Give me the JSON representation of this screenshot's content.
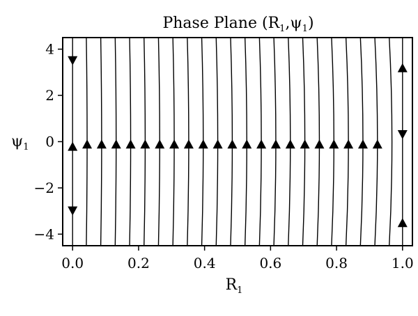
{
  "chart_data": {
    "type": "streamplot",
    "title": "Phase Plane (R",
    "title_sub": "1",
    "title_mid": ",ψ",
    "title_sub2": "1",
    "title_end": ")",
    "xlabel": "R",
    "xlabel_sub": "1",
    "ylabel": "ψ",
    "ylabel_sub": "1",
    "xlim": [
      -0.03,
      1.03
    ],
    "ylim": [
      -4.5,
      4.5
    ],
    "x_ticks": [
      0.0,
      0.2,
      0.4,
      0.6,
      0.8,
      1.0
    ],
    "x_tick_labels": [
      "0.0",
      "0.2",
      "0.4",
      "0.6",
      "0.8",
      "1.0"
    ],
    "y_ticks": [
      -4,
      -2,
      0,
      2,
      4
    ],
    "y_tick_labels": [
      "−4",
      "−2",
      "0",
      "2",
      "4"
    ],
    "grid": false,
    "line_color": "#000000",
    "streamlines_x": [
      0.0,
      0.044,
      0.088,
      0.132,
      0.176,
      0.22,
      0.264,
      0.308,
      0.352,
      0.396,
      0.44,
      0.484,
      0.528,
      0.572,
      0.616,
      0.66,
      0.704,
      0.748,
      0.792,
      0.836,
      0.88,
      0.924,
      0.968,
      1.0
    ],
    "arrows": [
      {
        "x": 0.0,
        "y": 3.5,
        "dir": "down"
      },
      {
        "x": 0.0,
        "y": -0.2,
        "dir": "up"
      },
      {
        "x": 0.0,
        "y": -3.0,
        "dir": "down"
      },
      {
        "x": 0.044,
        "y": -0.1,
        "dir": "up"
      },
      {
        "x": 0.088,
        "y": -0.1,
        "dir": "up"
      },
      {
        "x": 0.132,
        "y": -0.1,
        "dir": "up"
      },
      {
        "x": 0.176,
        "y": -0.1,
        "dir": "up"
      },
      {
        "x": 0.22,
        "y": -0.1,
        "dir": "up"
      },
      {
        "x": 0.264,
        "y": -0.1,
        "dir": "up"
      },
      {
        "x": 0.308,
        "y": -0.1,
        "dir": "up"
      },
      {
        "x": 0.352,
        "y": -0.1,
        "dir": "up"
      },
      {
        "x": 0.396,
        "y": -0.1,
        "dir": "up"
      },
      {
        "x": 0.44,
        "y": -0.1,
        "dir": "up"
      },
      {
        "x": 0.484,
        "y": -0.1,
        "dir": "up"
      },
      {
        "x": 0.528,
        "y": -0.1,
        "dir": "up"
      },
      {
        "x": 0.572,
        "y": -0.1,
        "dir": "up"
      },
      {
        "x": 0.616,
        "y": -0.1,
        "dir": "up"
      },
      {
        "x": 0.66,
        "y": -0.1,
        "dir": "up"
      },
      {
        "x": 0.704,
        "y": -0.1,
        "dir": "up"
      },
      {
        "x": 0.748,
        "y": -0.1,
        "dir": "up"
      },
      {
        "x": 0.792,
        "y": -0.1,
        "dir": "up"
      },
      {
        "x": 0.836,
        "y": -0.1,
        "dir": "up"
      },
      {
        "x": 0.88,
        "y": -0.1,
        "dir": "up"
      },
      {
        "x": 0.924,
        "y": -0.1,
        "dir": "up"
      },
      {
        "x": 1.0,
        "y": 3.2,
        "dir": "up"
      },
      {
        "x": 1.0,
        "y": 0.3,
        "dir": "down"
      },
      {
        "x": 1.0,
        "y": -3.5,
        "dir": "up"
      }
    ]
  }
}
